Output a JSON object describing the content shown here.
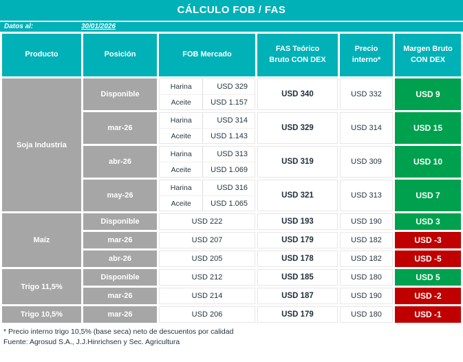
{
  "palette": {
    "teal": "#00b1b8",
    "gray": "#a6a6a6",
    "green": "#00a14e",
    "red": "#c00000",
    "ink": "#24343f"
  },
  "title": "CÁLCULO FOB / FAS",
  "meta": {
    "label": "Datos al:",
    "date": "30/01/2026"
  },
  "columns": [
    "Producto",
    "Posición",
    "FOB Mercado",
    "FAS Teórico\nBruto CON DEX",
    "Precio\ninterno*",
    "Margen Bruto\nCON DEX"
  ],
  "sections": [
    {
      "product": "Soja Industria",
      "rows": [
        {
          "position": "Disponible",
          "fob": {
            "items": [
              {
                "label": "Harina",
                "value": "USD 329"
              },
              {
                "label": "Aceite",
                "value": "USD 1.157"
              }
            ]
          },
          "fas": "USD 340",
          "precio_interno": "USD 332",
          "margen": {
            "value": "USD 9",
            "tone": "positive"
          }
        },
        {
          "position": "mar-26",
          "fob": {
            "items": [
              {
                "label": "Harina",
                "value": "USD 314"
              },
              {
                "label": "Aceite",
                "value": "USD 1.143"
              }
            ]
          },
          "fas": "USD 329",
          "precio_interno": "USD 314",
          "margen": {
            "value": "USD 15",
            "tone": "positive"
          }
        },
        {
          "position": "abr-26",
          "fob": {
            "items": [
              {
                "label": "Harina",
                "value": "USD 313"
              },
              {
                "label": "Aceite",
                "value": "USD 1.069"
              }
            ]
          },
          "fas": "USD 319",
          "precio_interno": "USD 309",
          "margen": {
            "value": "USD 10",
            "tone": "positive"
          }
        },
        {
          "position": "may-26",
          "fob": {
            "items": [
              {
                "label": "Harina",
                "value": "USD 316"
              },
              {
                "label": "Aceite",
                "value": "USD 1.065"
              }
            ]
          },
          "fas": "USD 321",
          "precio_interno": "USD 313",
          "margen": {
            "value": "USD 7",
            "tone": "positive"
          }
        }
      ]
    },
    {
      "product": "Maíz",
      "rows": [
        {
          "position": "Disponible",
          "fob": {
            "value": "USD 222"
          },
          "fas": "USD 193",
          "precio_interno": "USD 190",
          "margen": {
            "value": "USD 3",
            "tone": "positive"
          }
        },
        {
          "position": "mar-26",
          "fob": {
            "value": "USD 207"
          },
          "fas": "USD 179",
          "precio_interno": "USD 182",
          "margen": {
            "value": "USD -3",
            "tone": "negative"
          }
        },
        {
          "position": "abr-26",
          "fob": {
            "value": "USD 205"
          },
          "fas": "USD 178",
          "precio_interno": "USD 182",
          "margen": {
            "value": "USD -5",
            "tone": "negative"
          }
        }
      ]
    },
    {
      "product": "Trigo 11,5%",
      "rows": [
        {
          "position": "Disponible",
          "fob": {
            "value": "USD 212"
          },
          "fas": "USD 185",
          "precio_interno": "USD 180",
          "margen": {
            "value": "USD 5",
            "tone": "positive"
          }
        },
        {
          "position": "mar-26",
          "fob": {
            "value": "USD 214"
          },
          "fas": "USD 187",
          "precio_interno": "USD 190",
          "margen": {
            "value": "USD -2",
            "tone": "negative"
          }
        }
      ]
    },
    {
      "product": "Trigo 10,5%",
      "rows": [
        {
          "position": "mar-26",
          "fob": {
            "value": "USD 206"
          },
          "fas": "USD 179",
          "precio_interno": "USD 180",
          "margen": {
            "value": "USD -1",
            "tone": "negative"
          }
        }
      ]
    }
  ],
  "footnotes": [
    "* Precio interno trigo 10,5% (base seca) neto de descuentos por calidad",
    "Fuente: Agrosud S.A., J.J.Hinrichsen y Sec. Agricultura"
  ],
  "chart_data": {
    "type": "table",
    "title": "CÁLCULO FOB / FAS",
    "subtitle": "Datos al: 30/01/2026",
    "columns": [
      "Producto",
      "Posición",
      "FOB Mercado",
      "FAS Teórico Bruto CON DEX",
      "Precio interno*",
      "Margen Bruto CON DEX"
    ],
    "rows": [
      [
        "Soja Industria",
        "Disponible",
        "Harina USD 329 / Aceite USD 1.157",
        "USD 340",
        "USD 332",
        "USD 9"
      ],
      [
        "Soja Industria",
        "mar-26",
        "Harina USD 314 / Aceite USD 1.143",
        "USD 329",
        "USD 314",
        "USD 15"
      ],
      [
        "Soja Industria",
        "abr-26",
        "Harina USD 313 / Aceite USD 1.069",
        "USD 319",
        "USD 309",
        "USD 10"
      ],
      [
        "Soja Industria",
        "may-26",
        "Harina USD 316 / Aceite USD 1.065",
        "USD 321",
        "USD 313",
        "USD 7"
      ],
      [
        "Maíz",
        "Disponible",
        "USD 222",
        "USD 193",
        "USD 190",
        "USD 3"
      ],
      [
        "Maíz",
        "mar-26",
        "USD 207",
        "USD 179",
        "USD 182",
        "USD -3"
      ],
      [
        "Maíz",
        "abr-26",
        "USD 205",
        "USD 178",
        "USD 182",
        "USD -5"
      ],
      [
        "Trigo 11,5%",
        "Disponible",
        "USD 212",
        "USD 185",
        "USD 180",
        "USD 5"
      ],
      [
        "Trigo 11,5%",
        "mar-26",
        "USD 214",
        "USD 187",
        "USD 190",
        "USD -2"
      ],
      [
        "Trigo 10,5%",
        "mar-26",
        "USD 206",
        "USD 179",
        "USD 180",
        "USD -1"
      ]
    ]
  }
}
